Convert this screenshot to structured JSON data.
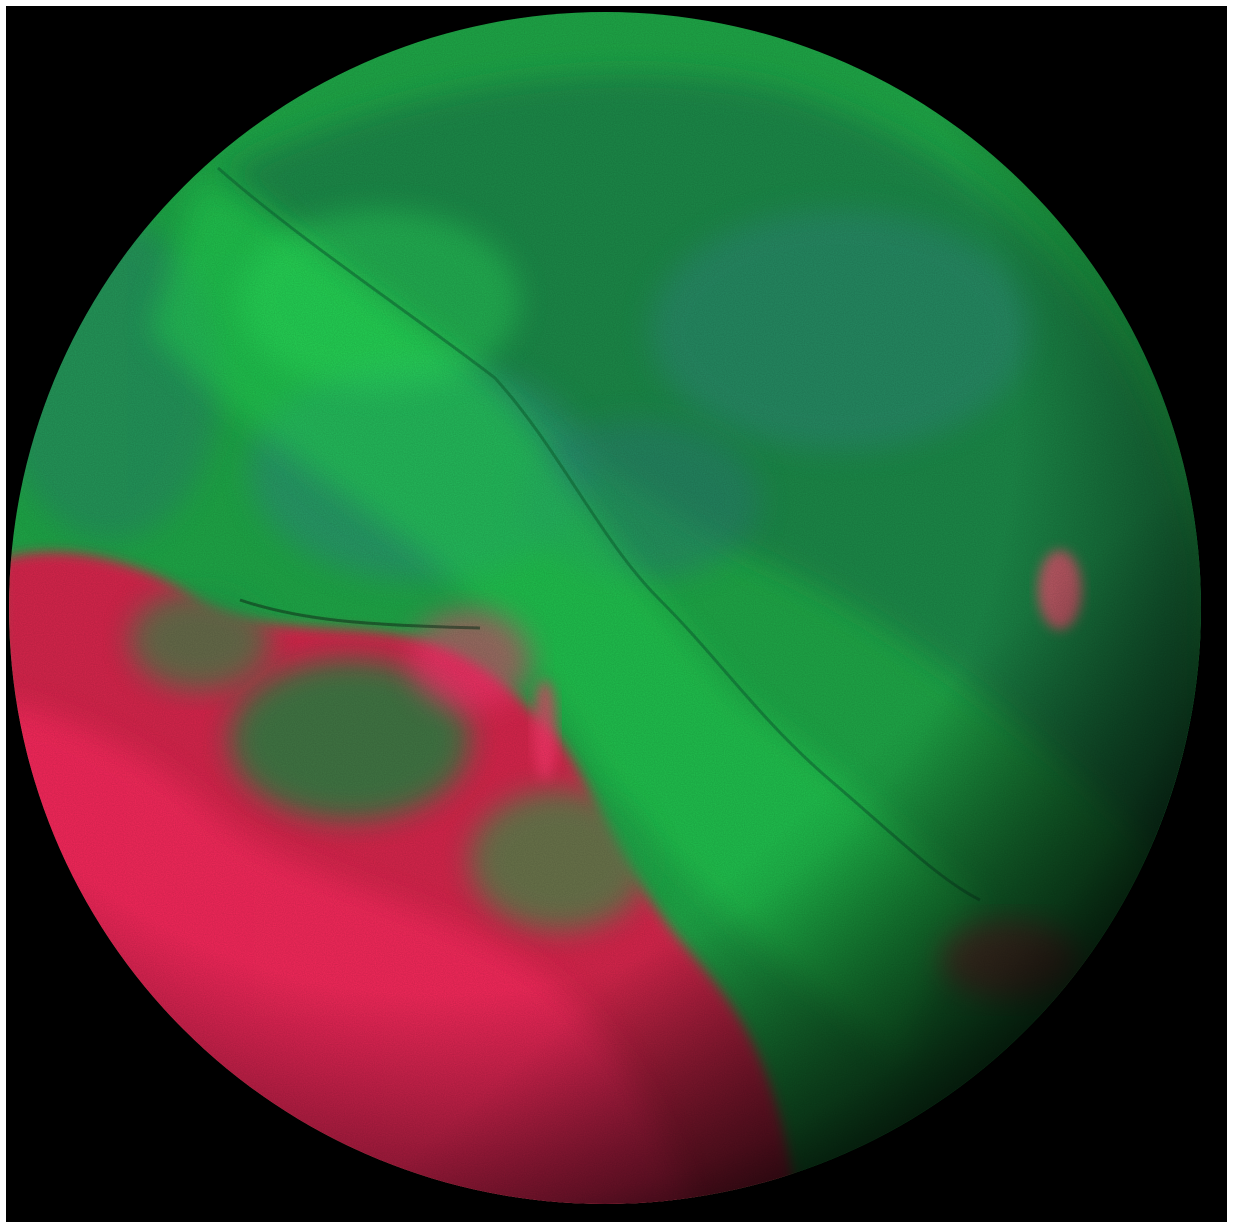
{
  "image": {
    "subject": "planetary-body",
    "colors": {
      "frame": "#ffffff",
      "space": "#000000",
      "green_bright": "#22e050",
      "green_mid": "#1fa848",
      "green_dark": "#157a40",
      "teal": "#2f8a78",
      "red_bright": "#ff2a60",
      "red_mid": "#d8284e",
      "red_dark": "#6a1a2a"
    }
  }
}
